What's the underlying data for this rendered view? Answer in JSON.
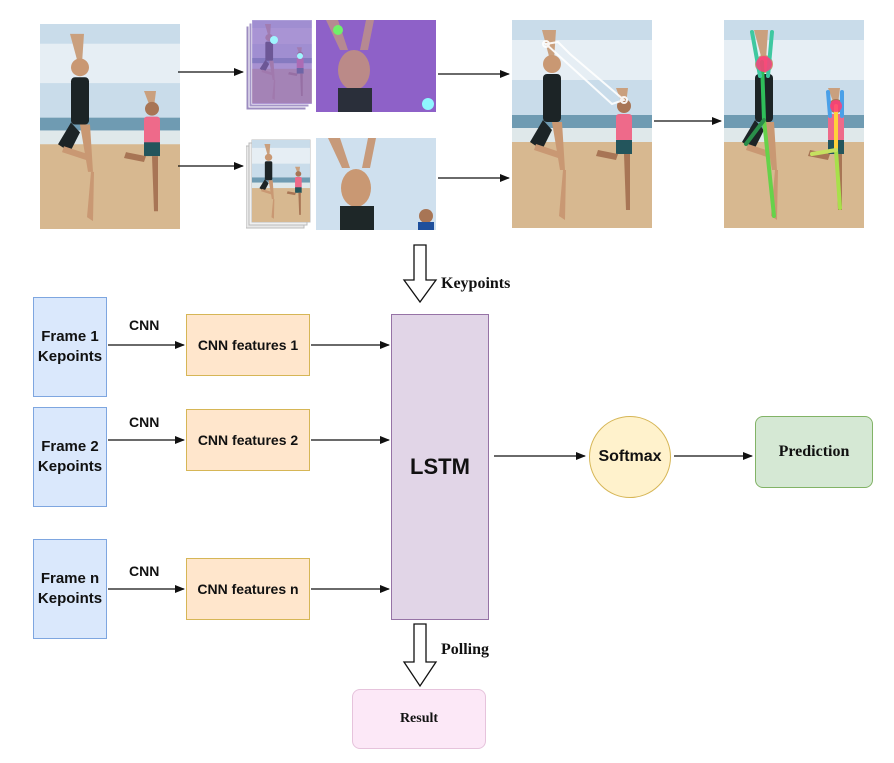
{
  "frames": [
    {
      "label_line1": "Frame 1",
      "label_line2": "Kepoints"
    },
    {
      "label_line1": "Frame 2",
      "label_line2": "Kepoints"
    },
    {
      "label_line1": "Frame n",
      "label_line2": "Kepoints"
    }
  ],
  "cnn_label": "CNN",
  "features": [
    "CNN features 1",
    "CNN features 2",
    "CNN features n"
  ],
  "lstm_label": "LSTM",
  "softmax_label": "Softmax",
  "prediction_label": "Prediction",
  "keypoints_label": "Keypoints",
  "polling_label": "Polling",
  "result_label": "Result",
  "colors": {
    "frame_fill": "#dae8fc",
    "feature_fill": "#ffe6cc",
    "lstm_fill": "#e1d5e7",
    "softmax_fill": "#fff2cc",
    "prediction_fill": "#d5e8d4",
    "result_fill": "#fce8f7"
  }
}
